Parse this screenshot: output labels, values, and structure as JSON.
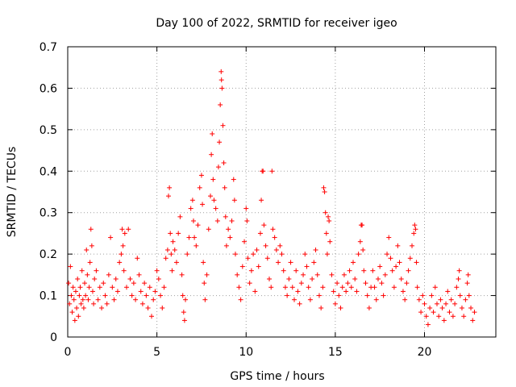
{
  "chart_data": {
    "type": "scatter",
    "title": "Day 100 of 2022, SRMTID for receiver igeo",
    "xlabel": "GPS time / hours",
    "ylabel": "SRMTID / TECUs",
    "xlim": [
      0,
      24
    ],
    "ylim": [
      0,
      0.7
    ],
    "x_ticks": [
      0,
      5,
      10,
      15,
      20
    ],
    "x_tick_labels": [
      "0",
      "5",
      "10",
      "15",
      "20"
    ],
    "y_ticks": [
      0,
      0.1,
      0.2,
      0.3,
      0.4,
      0.5,
      0.6,
      0.7
    ],
    "y_tick_labels": [
      "0",
      "0.1",
      "0.2",
      "0.3",
      "0.4",
      "0.5",
      "0.6",
      "0.7"
    ],
    "grid": true,
    "marker": "+",
    "marker_color": "#ff0000",
    "x_range_of_data": [
      0,
      22.8
    ],
    "series": [
      {
        "name": "SRMTID",
        "points": [
          [
            0.05,
            0.13
          ],
          [
            0.1,
            0.08
          ],
          [
            0.15,
            0.17
          ],
          [
            0.2,
            0.1
          ],
          [
            0.25,
            0.06
          ],
          [
            0.3,
            0.12
          ],
          [
            0.35,
            0.09
          ],
          [
            0.4,
            0.04
          ],
          [
            0.45,
            0.11
          ],
          [
            0.5,
            0.07
          ],
          [
            0.55,
            0.14
          ],
          [
            0.6,
            0.05
          ],
          [
            0.65,
            0.1
          ],
          [
            0.7,
            0.12
          ],
          [
            0.75,
            0.08
          ],
          [
            0.8,
            0.16
          ],
          [
            0.85,
            0.09
          ],
          [
            0.9,
            0.07
          ],
          [
            0.95,
            0.13
          ],
          [
            1.0,
            0.1
          ],
          [
            1.05,
            0.21
          ],
          [
            1.1,
            0.15
          ],
          [
            1.15,
            0.09
          ],
          [
            1.2,
            0.12
          ],
          [
            1.25,
            0.18
          ],
          [
            1.3,
            0.26
          ],
          [
            1.35,
            0.22
          ],
          [
            1.4,
            0.11
          ],
          [
            1.45,
            0.08
          ],
          [
            1.5,
            0.14
          ],
          [
            1.6,
            0.16
          ],
          [
            1.7,
            0.09
          ],
          [
            1.8,
            0.12
          ],
          [
            1.9,
            0.07
          ],
          [
            2.0,
            0.13
          ],
          [
            2.1,
            0.1
          ],
          [
            2.2,
            0.08
          ],
          [
            2.3,
            0.15
          ],
          [
            2.4,
            0.24
          ],
          [
            2.5,
            0.12
          ],
          [
            2.6,
            0.09
          ],
          [
            2.7,
            0.14
          ],
          [
            2.8,
            0.11
          ],
          [
            2.9,
            0.18
          ],
          [
            3.0,
            0.2
          ],
          [
            3.05,
            0.26
          ],
          [
            3.1,
            0.22
          ],
          [
            3.15,
            0.16
          ],
          [
            3.2,
            0.25
          ],
          [
            3.3,
            0.12
          ],
          [
            3.4,
            0.26
          ],
          [
            3.5,
            0.14
          ],
          [
            3.6,
            0.1
          ],
          [
            3.7,
            0.13
          ],
          [
            3.8,
            0.09
          ],
          [
            3.9,
            0.19
          ],
          [
            4.0,
            0.15
          ],
          [
            4.1,
            0.11
          ],
          [
            4.2,
            0.08
          ],
          [
            4.3,
            0.13
          ],
          [
            4.4,
            0.1
          ],
          [
            4.5,
            0.07
          ],
          [
            4.6,
            0.12
          ],
          [
            4.7,
            0.05
          ],
          [
            4.8,
            0.09
          ],
          [
            4.9,
            0.11
          ],
          [
            5.0,
            0.16
          ],
          [
            5.1,
            0.14
          ],
          [
            5.2,
            0.1
          ],
          [
            5.3,
            0.07
          ],
          [
            5.4,
            0.12
          ],
          [
            5.5,
            0.19
          ],
          [
            5.6,
            0.21
          ],
          [
            5.65,
            0.34
          ],
          [
            5.7,
            0.36
          ],
          [
            5.75,
            0.25
          ],
          [
            5.8,
            0.2
          ],
          [
            5.85,
            0.16
          ],
          [
            5.9,
            0.23
          ],
          [
            6.0,
            0.21
          ],
          [
            6.1,
            0.18
          ],
          [
            6.2,
            0.25
          ],
          [
            6.3,
            0.29
          ],
          [
            6.4,
            0.15
          ],
          [
            6.45,
            0.1
          ],
          [
            6.5,
            0.06
          ],
          [
            6.55,
            0.04
          ],
          [
            6.6,
            0.09
          ],
          [
            6.7,
            0.2
          ],
          [
            6.8,
            0.24
          ],
          [
            6.9,
            0.31
          ],
          [
            7.0,
            0.33
          ],
          [
            7.05,
            0.28
          ],
          [
            7.1,
            0.24
          ],
          [
            7.2,
            0.22
          ],
          [
            7.3,
            0.27
          ],
          [
            7.4,
            0.36
          ],
          [
            7.5,
            0.39
          ],
          [
            7.55,
            0.32
          ],
          [
            7.6,
            0.18
          ],
          [
            7.65,
            0.13
          ],
          [
            7.7,
            0.09
          ],
          [
            7.8,
            0.15
          ],
          [
            7.9,
            0.26
          ],
          [
            8.0,
            0.34
          ],
          [
            8.05,
            0.44
          ],
          [
            8.1,
            0.49
          ],
          [
            8.15,
            0.38
          ],
          [
            8.2,
            0.33
          ],
          [
            8.3,
            0.31
          ],
          [
            8.4,
            0.28
          ],
          [
            8.45,
            0.41
          ],
          [
            8.5,
            0.47
          ],
          [
            8.55,
            0.56
          ],
          [
            8.6,
            0.64
          ],
          [
            8.62,
            0.62
          ],
          [
            8.65,
            0.6
          ],
          [
            8.7,
            0.51
          ],
          [
            8.75,
            0.42
          ],
          [
            8.8,
            0.36
          ],
          [
            8.85,
            0.29
          ],
          [
            8.9,
            0.22
          ],
          [
            9.0,
            0.26
          ],
          [
            9.1,
            0.24
          ],
          [
            9.2,
            0.28
          ],
          [
            9.3,
            0.38
          ],
          [
            9.35,
            0.33
          ],
          [
            9.4,
            0.2
          ],
          [
            9.5,
            0.15
          ],
          [
            9.6,
            0.12
          ],
          [
            9.7,
            0.09
          ],
          [
            9.8,
            0.17
          ],
          [
            9.9,
            0.23
          ],
          [
            10.0,
            0.31
          ],
          [
            10.05,
            0.28
          ],
          [
            10.1,
            0.19
          ],
          [
            10.2,
            0.13
          ],
          [
            10.3,
            0.16
          ],
          [
            10.4,
            0.2
          ],
          [
            10.5,
            0.11
          ],
          [
            10.6,
            0.21
          ],
          [
            10.7,
            0.17
          ],
          [
            10.8,
            0.25
          ],
          [
            10.85,
            0.33
          ],
          [
            10.9,
            0.4
          ],
          [
            10.95,
            0.4
          ],
          [
            11.0,
            0.27
          ],
          [
            11.1,
            0.22
          ],
          [
            11.2,
            0.19
          ],
          [
            11.3,
            0.14
          ],
          [
            11.4,
            0.12
          ],
          [
            11.45,
            0.4
          ],
          [
            11.5,
            0.26
          ],
          [
            11.6,
            0.24
          ],
          [
            11.7,
            0.21
          ],
          [
            11.8,
            0.18
          ],
          [
            11.9,
            0.22
          ],
          [
            12.0,
            0.2
          ],
          [
            12.1,
            0.16
          ],
          [
            12.2,
            0.12
          ],
          [
            12.3,
            0.1
          ],
          [
            12.4,
            0.14
          ],
          [
            12.5,
            0.18
          ],
          [
            12.6,
            0.12
          ],
          [
            12.7,
            0.09
          ],
          [
            12.8,
            0.16
          ],
          [
            12.9,
            0.11
          ],
          [
            13.0,
            0.08
          ],
          [
            13.1,
            0.13
          ],
          [
            13.2,
            0.15
          ],
          [
            13.3,
            0.2
          ],
          [
            13.4,
            0.17
          ],
          [
            13.5,
            0.12
          ],
          [
            13.6,
            0.09
          ],
          [
            13.7,
            0.14
          ],
          [
            13.8,
            0.18
          ],
          [
            13.9,
            0.21
          ],
          [
            14.0,
            0.15
          ],
          [
            14.1,
            0.1
          ],
          [
            14.2,
            0.07
          ],
          [
            14.3,
            0.12
          ],
          [
            14.35,
            0.36
          ],
          [
            14.4,
            0.35
          ],
          [
            14.45,
            0.3
          ],
          [
            14.5,
            0.25
          ],
          [
            14.55,
            0.2
          ],
          [
            14.6,
            0.29
          ],
          [
            14.65,
            0.28
          ],
          [
            14.7,
            0.23
          ],
          [
            14.8,
            0.15
          ],
          [
            14.9,
            0.11
          ],
          [
            15.0,
            0.08
          ],
          [
            15.1,
            0.13
          ],
          [
            15.2,
            0.1
          ],
          [
            15.3,
            0.07
          ],
          [
            15.4,
            0.12
          ],
          [
            15.5,
            0.15
          ],
          [
            15.6,
            0.11
          ],
          [
            15.7,
            0.13
          ],
          [
            15.8,
            0.16
          ],
          [
            15.9,
            0.12
          ],
          [
            16.0,
            0.18
          ],
          [
            16.1,
            0.14
          ],
          [
            16.2,
            0.11
          ],
          [
            16.3,
            0.2
          ],
          [
            16.4,
            0.23
          ],
          [
            16.45,
            0.27
          ],
          [
            16.5,
            0.27
          ],
          [
            16.55,
            0.21
          ],
          [
            16.6,
            0.16
          ],
          [
            16.7,
            0.13
          ],
          [
            16.8,
            0.1
          ],
          [
            16.9,
            0.07
          ],
          [
            17.0,
            0.12
          ],
          [
            17.1,
            0.16
          ],
          [
            17.2,
            0.12
          ],
          [
            17.3,
            0.09
          ],
          [
            17.4,
            0.14
          ],
          [
            17.5,
            0.17
          ],
          [
            17.6,
            0.13
          ],
          [
            17.7,
            0.1
          ],
          [
            17.8,
            0.15
          ],
          [
            17.9,
            0.2
          ],
          [
            18.0,
            0.24
          ],
          [
            18.1,
            0.19
          ],
          [
            18.2,
            0.16
          ],
          [
            18.3,
            0.12
          ],
          [
            18.4,
            0.17
          ],
          [
            18.5,
            0.22
          ],
          [
            18.6,
            0.18
          ],
          [
            18.7,
            0.14
          ],
          [
            18.8,
            0.11
          ],
          [
            18.9,
            0.09
          ],
          [
            19.0,
            0.13
          ],
          [
            19.1,
            0.16
          ],
          [
            19.2,
            0.19
          ],
          [
            19.3,
            0.22
          ],
          [
            19.4,
            0.25
          ],
          [
            19.45,
            0.27
          ],
          [
            19.5,
            0.26
          ],
          [
            19.55,
            0.18
          ],
          [
            19.6,
            0.12
          ],
          [
            19.7,
            0.09
          ],
          [
            19.8,
            0.06
          ],
          [
            19.9,
            0.1
          ],
          [
            20.0,
            0.08
          ],
          [
            20.1,
            0.05
          ],
          [
            20.2,
            0.03
          ],
          [
            20.3,
            0.07
          ],
          [
            20.4,
            0.1
          ],
          [
            20.5,
            0.06
          ],
          [
            20.6,
            0.12
          ],
          [
            20.7,
            0.08
          ],
          [
            20.8,
            0.05
          ],
          [
            20.9,
            0.09
          ],
          [
            21.0,
            0.07
          ],
          [
            21.1,
            0.04
          ],
          [
            21.2,
            0.08
          ],
          [
            21.3,
            0.11
          ],
          [
            21.4,
            0.06
          ],
          [
            21.5,
            0.09
          ],
          [
            21.6,
            0.05
          ],
          [
            21.7,
            0.08
          ],
          [
            21.8,
            0.12
          ],
          [
            21.9,
            0.14
          ],
          [
            21.95,
            0.16
          ],
          [
            22.0,
            0.1
          ],
          [
            22.1,
            0.07
          ],
          [
            22.2,
            0.05
          ],
          [
            22.3,
            0.09
          ],
          [
            22.4,
            0.13
          ],
          [
            22.45,
            0.15
          ],
          [
            22.5,
            0.1
          ],
          [
            22.6,
            0.07
          ],
          [
            22.7,
            0.04
          ],
          [
            22.8,
            0.06
          ]
        ]
      }
    ]
  }
}
